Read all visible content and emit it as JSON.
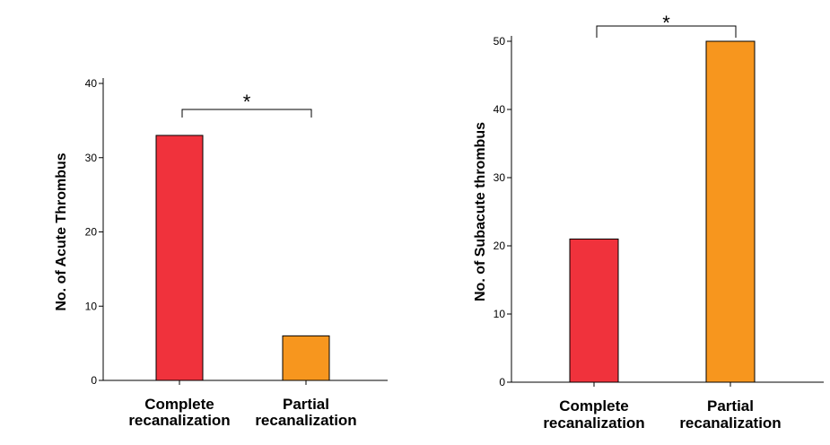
{
  "colors": {
    "complete": "#f0323c",
    "partial": "#f7961e"
  },
  "chart_data": [
    {
      "type": "bar",
      "categories": [
        "Complete recanalization",
        "Partial recanalization"
      ],
      "category_lines": [
        [
          "Complete",
          "recanalization"
        ],
        [
          "Partial",
          "recanalization"
        ]
      ],
      "values": [
        33,
        6
      ],
      "ylabel": "No. of Acute Thrombus",
      "xlabel": "",
      "ylim": [
        0,
        40
      ],
      "yticks": [
        0,
        10,
        20,
        30,
        40
      ],
      "significance": "*",
      "bar_colors": [
        "complete",
        "partial"
      ]
    },
    {
      "type": "bar",
      "categories": [
        "Complete recanalization",
        "Partial recanalization"
      ],
      "category_lines": [
        [
          "Complete",
          "recanalization"
        ],
        [
          "Partial",
          "recanalization"
        ]
      ],
      "values": [
        21,
        50
      ],
      "ylabel": "No. of Subacute thrombus",
      "xlabel": "",
      "ylim": [
        0,
        50
      ],
      "yticks": [
        0,
        10,
        20,
        30,
        40,
        50
      ],
      "significance": "*",
      "bar_colors": [
        "complete",
        "partial"
      ]
    }
  ]
}
